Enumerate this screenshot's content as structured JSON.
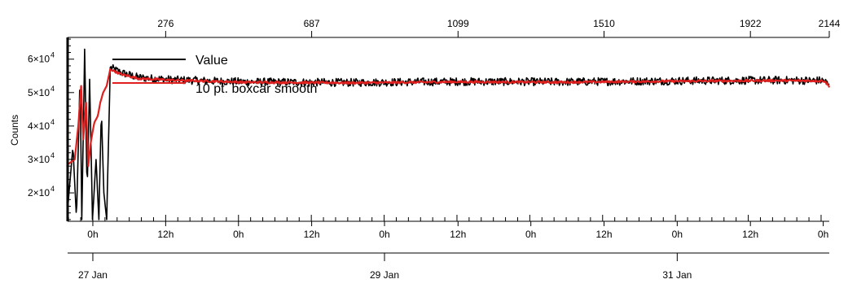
{
  "chart_data": {
    "type": "line",
    "title": "",
    "ylabel": "Counts",
    "xlabel": "",
    "ylim": [
      11500,
      66500
    ],
    "xlim_index": [
      0,
      2144
    ],
    "top_axis": {
      "ticks": [
        276,
        687,
        1099,
        1510,
        1922,
        2144
      ],
      "labels": [
        "276",
        "687",
        "1099",
        "1510",
        "1922",
        "2144"
      ]
    },
    "y_ticks": [
      {
        "value": 20000,
        "mantissa": "2×10",
        "exp": "4"
      },
      {
        "value": 30000,
        "mantissa": "3×10",
        "exp": "4"
      },
      {
        "value": 40000,
        "mantissa": "4×10",
        "exp": "4"
      },
      {
        "value": 50000,
        "mantissa": "5×10",
        "exp": "4"
      },
      {
        "value": 60000,
        "mantissa": "6×10",
        "exp": "4"
      }
    ],
    "time_axis": {
      "ticks": [
        {
          "index": 71,
          "label": "0h"
        },
        {
          "index": 276,
          "label": "12h"
        },
        {
          "index": 481,
          "label": "0h"
        },
        {
          "index": 687,
          "label": "12h"
        },
        {
          "index": 892,
          "label": "0h"
        },
        {
          "index": 1099,
          "label": "12h"
        },
        {
          "index": 1304,
          "label": "0h"
        },
        {
          "index": 1510,
          "label": "12h"
        },
        {
          "index": 1716,
          "label": "0h"
        },
        {
          "index": 1922,
          "label": "12h"
        },
        {
          "index": 2127,
          "label": "0h"
        }
      ]
    },
    "date_axis": {
      "ticks": [
        {
          "index": 71,
          "label": "27 Jan"
        },
        {
          "index": 892,
          "label": "29 Jan"
        },
        {
          "index": 1716,
          "label": "31 Jan"
        }
      ]
    },
    "legend": {
      "position": "top-left"
    },
    "series": [
      {
        "name": "Value",
        "color": "#000000",
        "points": [
          [
            0,
            15000
          ],
          [
            15,
            34000
          ],
          [
            25,
            12000
          ],
          [
            35,
            55000
          ],
          [
            40,
            12000
          ],
          [
            48,
            63000
          ],
          [
            55,
            20000
          ],
          [
            62,
            54000
          ],
          [
            70,
            12000
          ],
          [
            80,
            30000
          ],
          [
            88,
            12000
          ],
          [
            95,
            45000
          ],
          [
            102,
            20000
          ],
          [
            110,
            12000
          ],
          [
            120,
            57500
          ],
          [
            150,
            56000
          ],
          [
            200,
            54500
          ],
          [
            300,
            53800
          ],
          [
            500,
            53200
          ],
          [
            800,
            53000
          ],
          [
            1100,
            53300
          ],
          [
            1400,
            53200
          ],
          [
            1700,
            53500
          ],
          [
            2000,
            53700
          ],
          [
            2130,
            53600
          ],
          [
            2144,
            52000
          ]
        ],
        "noise": 1200
      },
      {
        "name": "10 pt. boxcar smooth",
        "color": "#e0201e",
        "points": [
          [
            0,
            28500
          ],
          [
            20,
            30000
          ],
          [
            30,
            40000
          ],
          [
            38,
            52000
          ],
          [
            44,
            36000
          ],
          [
            52,
            47000
          ],
          [
            58,
            28000
          ],
          [
            65,
            35000
          ],
          [
            75,
            41000
          ],
          [
            85,
            43000
          ],
          [
            92,
            47000
          ],
          [
            100,
            50000
          ],
          [
            110,
            52000
          ],
          [
            120,
            57000
          ],
          [
            150,
            55500
          ],
          [
            200,
            54200
          ],
          [
            300,
            53700
          ],
          [
            500,
            53100
          ],
          [
            800,
            52900
          ],
          [
            1100,
            53200
          ],
          [
            1400,
            53100
          ],
          [
            1700,
            53400
          ],
          [
            2000,
            53600
          ],
          [
            2130,
            53500
          ],
          [
            2144,
            51800
          ]
        ],
        "noise": 300
      }
    ]
  }
}
